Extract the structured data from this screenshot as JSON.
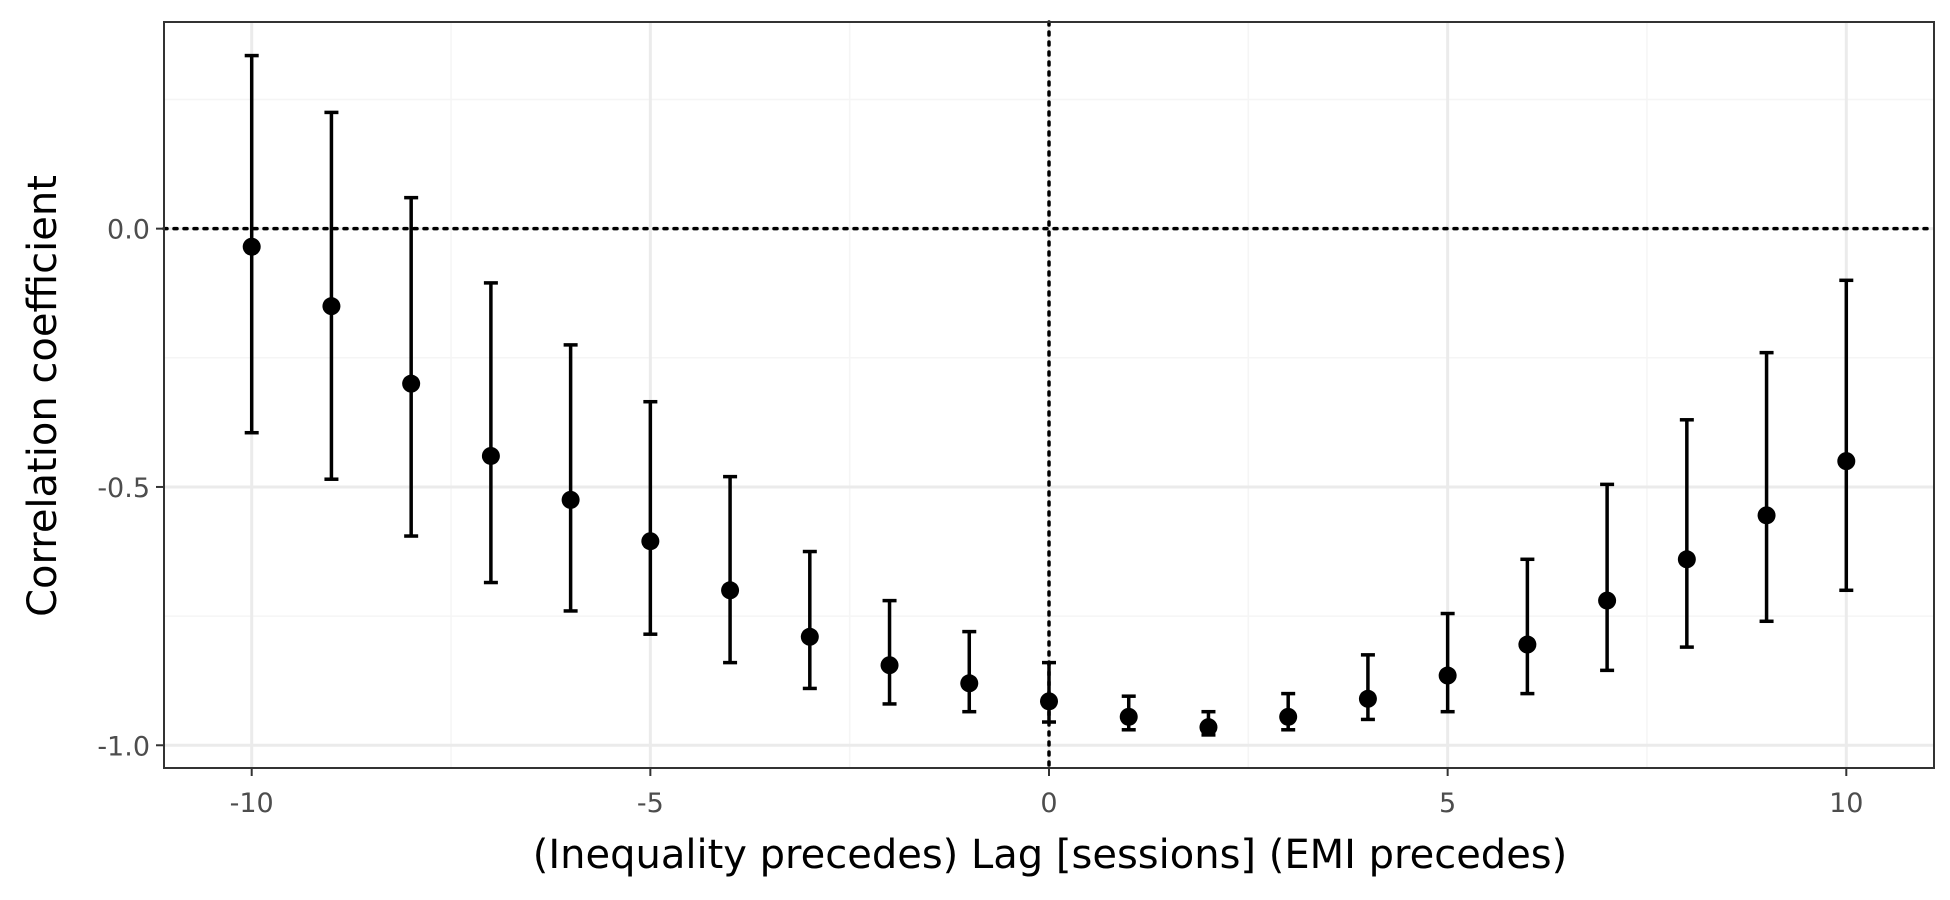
{
  "chart_data": {
    "type": "scatter",
    "xlabel": "(Inequality precedes)  Lag [sessions]  (EMI precedes)",
    "ylabel": "Correlation coefficient",
    "xlim": [
      -11.1,
      11.1
    ],
    "ylim": [
      -1.044,
      0.4
    ],
    "x_ticks": [
      -10,
      -5,
      0,
      5,
      10
    ],
    "x_tick_labels": [
      "-10",
      "-5",
      "0",
      "5",
      "10"
    ],
    "y_ticks": [
      -1.0,
      -0.5,
      0.0
    ],
    "y_tick_labels": [
      "-1.0",
      "-0.5",
      "0.0"
    ],
    "x_minor_grid": [
      -7.5,
      -2.5,
      2.5,
      7.5
    ],
    "y_minor_grid": [
      -0.75,
      -0.25,
      0.25
    ],
    "grid": true,
    "reference_lines": [
      {
        "orientation": "horizontal",
        "value": 0.0,
        "style": "dotted"
      },
      {
        "orientation": "vertical",
        "value": 0,
        "style": "dotted"
      }
    ],
    "points": [
      {
        "x": -10,
        "y": -0.035,
        "lower": -0.395,
        "upper": 0.335
      },
      {
        "x": -9,
        "y": -0.15,
        "lower": -0.485,
        "upper": 0.225
      },
      {
        "x": -8,
        "y": -0.3,
        "lower": -0.595,
        "upper": 0.06
      },
      {
        "x": -7,
        "y": -0.44,
        "lower": -0.685,
        "upper": -0.105
      },
      {
        "x": -6,
        "y": -0.525,
        "lower": -0.74,
        "upper": -0.225
      },
      {
        "x": -5,
        "y": -0.605,
        "lower": -0.785,
        "upper": -0.335
      },
      {
        "x": -4,
        "y": -0.7,
        "lower": -0.84,
        "upper": -0.48
      },
      {
        "x": -3,
        "y": -0.79,
        "lower": -0.89,
        "upper": -0.625
      },
      {
        "x": -2,
        "y": -0.845,
        "lower": -0.92,
        "upper": -0.72
      },
      {
        "x": -1,
        "y": -0.88,
        "lower": -0.935,
        "upper": -0.78
      },
      {
        "x": 0,
        "y": -0.915,
        "lower": -0.955,
        "upper": -0.84
      },
      {
        "x": 1,
        "y": -0.945,
        "lower": -0.97,
        "upper": -0.905
      },
      {
        "x": 2,
        "y": -0.965,
        "lower": -0.98,
        "upper": -0.935
      },
      {
        "x": 3,
        "y": -0.945,
        "lower": -0.97,
        "upper": -0.9
      },
      {
        "x": 4,
        "y": -0.91,
        "lower": -0.95,
        "upper": -0.825
      },
      {
        "x": 5,
        "y": -0.865,
        "lower": -0.935,
        "upper": -0.745
      },
      {
        "x": 6,
        "y": -0.805,
        "lower": -0.9,
        "upper": -0.64
      },
      {
        "x": 7,
        "y": -0.72,
        "lower": -0.855,
        "upper": -0.495
      },
      {
        "x": 8,
        "y": -0.64,
        "lower": -0.81,
        "upper": -0.37
      },
      {
        "x": 9,
        "y": -0.555,
        "lower": -0.76,
        "upper": -0.24
      },
      {
        "x": 10,
        "y": -0.45,
        "lower": -0.7,
        "upper": -0.1
      }
    ],
    "colors": {
      "points": "#000000",
      "panel_border": "#333333",
      "grid_major": "#ebebeb",
      "grid_minor": "#f5f5f5",
      "tick_text": "#4d4d4d"
    }
  }
}
